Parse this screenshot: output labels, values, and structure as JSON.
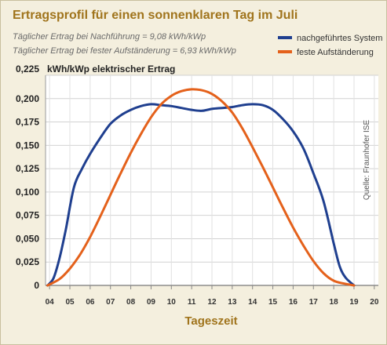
{
  "chart_data": {
    "type": "line",
    "title": "Ertragsprofil für einen sonnenklaren Tag im Juli",
    "subtitles": [
      "Täglicher Ertrag bei Nachführung = 9,08 kWh/kWp",
      "Täglicher Ertrag bei fester Aufständerung = 6,93 kWh/kWp"
    ],
    "ylabel": "kWh/kWp elektrischer Ertrag",
    "xlabel": "Tageszeit",
    "source": "Quelle: Fraunhofer ISE",
    "ylim": [
      0,
      0.225
    ],
    "xlim": [
      3.8,
      20.2
    ],
    "yticks": [
      {
        "value": 0,
        "label": "0"
      },
      {
        "value": 0.025,
        "label": "0,025"
      },
      {
        "value": 0.05,
        "label": "0,050"
      },
      {
        "value": 0.075,
        "label": "0,075"
      },
      {
        "value": 0.1,
        "label": "0,100"
      },
      {
        "value": 0.125,
        "label": "0,125"
      },
      {
        "value": 0.15,
        "label": "0,150"
      },
      {
        "value": 0.175,
        "label": "0,175"
      },
      {
        "value": 0.2,
        "label": "0,200"
      }
    ],
    "ytop_label": "0,225",
    "xticks": [
      {
        "value": 4,
        "label": "04"
      },
      {
        "value": 5,
        "label": "05"
      },
      {
        "value": 6,
        "label": "06"
      },
      {
        "value": 7,
        "label": "07"
      },
      {
        "value": 8,
        "label": "08"
      },
      {
        "value": 9,
        "label": "09"
      },
      {
        "value": 10,
        "label": "10"
      },
      {
        "value": 11,
        "label": "11"
      },
      {
        "value": 12,
        "label": "12"
      },
      {
        "value": 13,
        "label": "13"
      },
      {
        "value": 14,
        "label": "14"
      },
      {
        "value": 15,
        "label": "15"
      },
      {
        "value": 16,
        "label": "16"
      },
      {
        "value": 17,
        "label": "17"
      },
      {
        "value": 18,
        "label": "18"
      },
      {
        "value": 19,
        "label": "19"
      },
      {
        "value": 20,
        "label": "20"
      }
    ],
    "grid": true,
    "legend_position": "top-right",
    "series": [
      {
        "name": "nachgeführtes System",
        "color": "#1f3f8f",
        "x": [
          3.9,
          4.2,
          4.5,
          4.8,
          5.2,
          5.6,
          6.0,
          6.5,
          7.0,
          7.5,
          8.0,
          8.5,
          9.0,
          9.5,
          10.0,
          10.5,
          11.0,
          11.5,
          12.0,
          12.5,
          13.0,
          13.5,
          14.0,
          14.5,
          15.0,
          15.5,
          16.0,
          16.5,
          17.0,
          17.5,
          18.0,
          18.3,
          18.6,
          19.0
        ],
        "y": [
          0.0,
          0.008,
          0.03,
          0.06,
          0.105,
          0.125,
          0.141,
          0.158,
          0.173,
          0.182,
          0.188,
          0.192,
          0.194,
          0.193,
          0.192,
          0.19,
          0.188,
          0.187,
          0.189,
          0.19,
          0.191,
          0.193,
          0.194,
          0.193,
          0.188,
          0.178,
          0.165,
          0.147,
          0.12,
          0.09,
          0.045,
          0.02,
          0.008,
          0.0
        ]
      },
      {
        "name": "feste Aufständerung",
        "color": "#e4611b",
        "x": [
          3.9,
          4.5,
          5.0,
          5.5,
          6.0,
          6.5,
          7.0,
          7.5,
          8.0,
          8.5,
          9.0,
          9.5,
          10.0,
          10.5,
          11.0,
          11.5,
          12.0,
          12.5,
          13.0,
          13.5,
          14.0,
          14.5,
          15.0,
          15.5,
          16.0,
          16.5,
          17.0,
          17.5,
          18.0,
          18.5,
          19.0
        ],
        "y": [
          0.0,
          0.007,
          0.018,
          0.033,
          0.052,
          0.074,
          0.097,
          0.12,
          0.142,
          0.162,
          0.18,
          0.194,
          0.203,
          0.208,
          0.21,
          0.209,
          0.205,
          0.197,
          0.185,
          0.168,
          0.148,
          0.127,
          0.105,
          0.083,
          0.062,
          0.043,
          0.026,
          0.013,
          0.005,
          0.002,
          0.0
        ]
      }
    ]
  }
}
